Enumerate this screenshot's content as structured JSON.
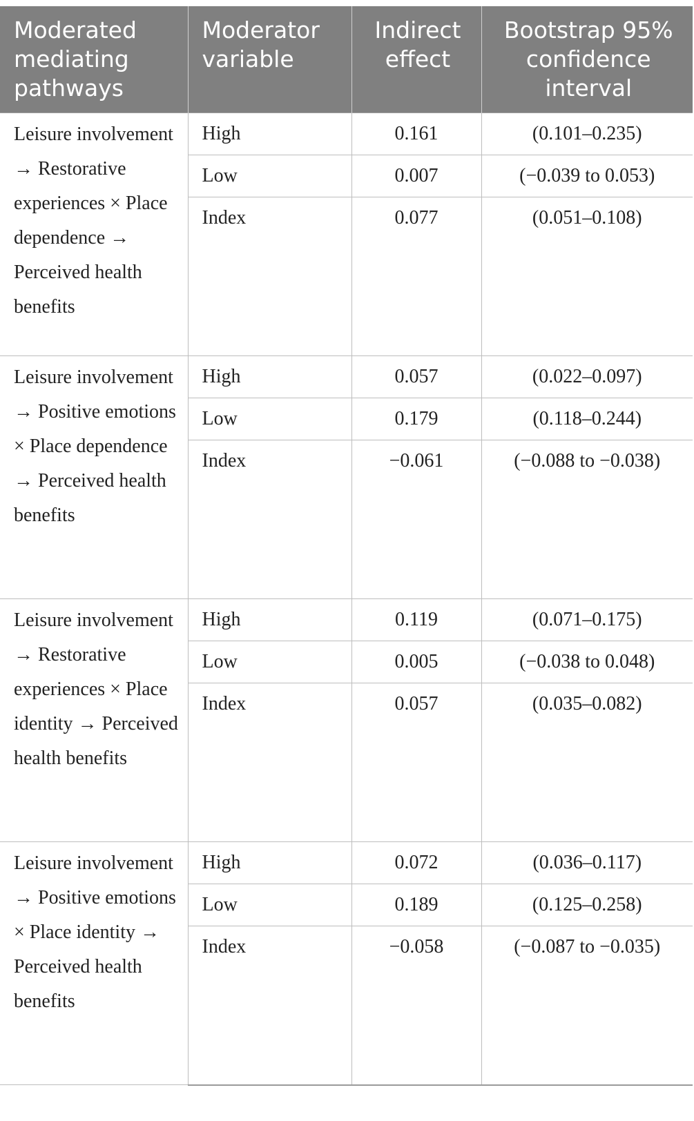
{
  "headers": [
    "Moderated mediating pathways",
    "Moderator variable",
    "Indirect effect",
    "Bootstrap 95% confidence interval"
  ],
  "groups": [
    {
      "pathway": "Leisure involvement → Restorative experiences × Place dependence → Perceived health benefits",
      "rows": [
        {
          "moderator": "High",
          "effect": "0.161",
          "ci": "(0.101–0.235)"
        },
        {
          "moderator": "Low",
          "effect": "0.007",
          "ci": "(−0.039 to 0.053)"
        },
        {
          "moderator": "Index",
          "effect": "0.077",
          "ci": "(0.051–0.108)"
        }
      ]
    },
    {
      "pathway": "Leisure involvement → Positive emotions × Place dependence → Perceived health benefits",
      "rows": [
        {
          "moderator": "High",
          "effect": "0.057",
          "ci": "(0.022–0.097)"
        },
        {
          "moderator": "Low",
          "effect": "0.179",
          "ci": "(0.118–0.244)"
        },
        {
          "moderator": "Index",
          "effect": "−0.061",
          "ci": "(−0.088 to −0.038)"
        }
      ]
    },
    {
      "pathway": "Leisure involvement → Restorative experiences × Place identity → Perceived health benefits",
      "rows": [
        {
          "moderator": "High",
          "effect": "0.119",
          "ci": "(0.071–0.175)"
        },
        {
          "moderator": "Low",
          "effect": "0.005",
          "ci": "(−0.038 to 0.048)"
        },
        {
          "moderator": "Index",
          "effect": "0.057",
          "ci": "(0.035–0.082)"
        }
      ]
    },
    {
      "pathway": "Leisure involvement → Positive emotions × Place identity → Perceived health benefits",
      "rows": [
        {
          "moderator": "High",
          "effect": "0.072",
          "ci": "(0.036–0.117)"
        },
        {
          "moderator": "Low",
          "effect": "0.189",
          "ci": "(0.125–0.258)"
        },
        {
          "moderator": "Index",
          "effect": "−0.058",
          "ci": "(−0.087 to −0.035)"
        }
      ]
    }
  ]
}
